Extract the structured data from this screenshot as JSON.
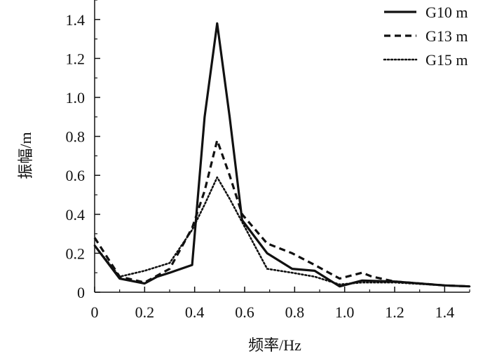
{
  "chart_data": {
    "type": "line",
    "xlabel": "频率/Hz",
    "ylabel": "振幅/m",
    "xlim": [
      0,
      1.5
    ],
    "ylim": [
      0,
      1.5
    ],
    "x_ticks": [
      "0",
      "0.2",
      "0.4",
      "0.6",
      "0.8",
      "1.0",
      "1.2",
      "1.4"
    ],
    "y_ticks": [
      "0",
      "0.2",
      "0.4",
      "0.6",
      "0.8",
      "1.0",
      "1.2",
      "1.4"
    ],
    "grid": false,
    "legend_position": "top-right",
    "series": [
      {
        "name": "G10 m",
        "style": "solid",
        "color": "#111111",
        "x": [
          0,
          0.1,
          0.2,
          0.25,
          0.3,
          0.39,
          0.44,
          0.49,
          0.54,
          0.59,
          0.69,
          0.79,
          0.88,
          0.98,
          1.07,
          1.2,
          1.4,
          1.5
        ],
        "y": [
          0.24,
          0.07,
          0.045,
          0.08,
          0.1,
          0.14,
          0.9,
          1.38,
          0.9,
          0.37,
          0.2,
          0.12,
          0.11,
          0.03,
          0.06,
          0.055,
          0.035,
          0.03
        ]
      },
      {
        "name": "G13 m",
        "style": "dashed",
        "color": "#111111",
        "x": [
          0,
          0.1,
          0.2,
          0.3,
          0.39,
          0.44,
          0.49,
          0.54,
          0.59,
          0.69,
          0.79,
          0.88,
          0.98,
          1.07,
          1.11,
          1.2,
          1.4,
          1.5
        ],
        "y": [
          0.28,
          0.08,
          0.05,
          0.12,
          0.33,
          0.52,
          0.78,
          0.6,
          0.4,
          0.25,
          0.2,
          0.14,
          0.07,
          0.1,
          0.08,
          0.055,
          0.035,
          0.03
        ]
      },
      {
        "name": "G15 m",
        "style": "dotted",
        "color": "#111111",
        "x": [
          0,
          0.1,
          0.2,
          0.3,
          0.39,
          0.44,
          0.49,
          0.54,
          0.59,
          0.69,
          0.79,
          0.88,
          0.98,
          1.07,
          1.2,
          1.4,
          1.5
        ],
        "y": [
          0.24,
          0.08,
          0.11,
          0.15,
          0.32,
          0.45,
          0.59,
          0.48,
          0.36,
          0.12,
          0.1,
          0.08,
          0.04,
          0.05,
          0.05,
          0.035,
          0.03
        ]
      }
    ]
  }
}
